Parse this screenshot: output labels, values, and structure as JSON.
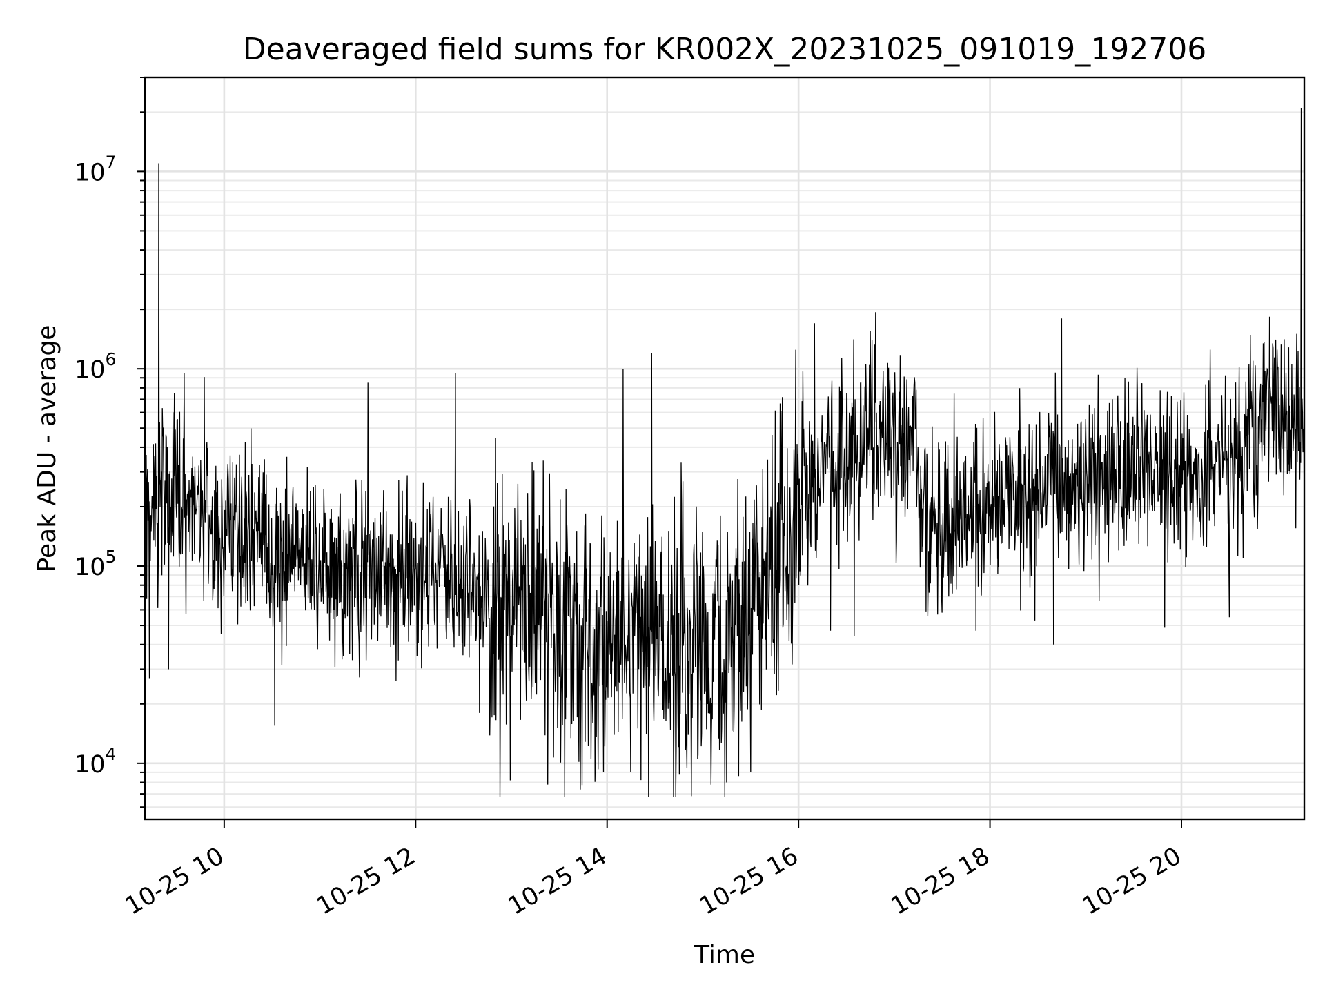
{
  "chart_data": {
    "type": "line",
    "title": "Deaveraged field sums for KR002X_20231025_091019_192706",
    "xlabel": "Time",
    "ylabel": "Peak ADU - average",
    "yscale": "log",
    "ylim": [
      5200,
      30000000
    ],
    "xlim": [
      "2023-10-25T09:10:19",
      "2023-10-25T21:17:00"
    ],
    "x_ticks": [
      {
        "x": "2023-10-25T10:00",
        "label": "10-25 10"
      },
      {
        "x": "2023-10-25T12:00",
        "label": "10-25 12"
      },
      {
        "x": "2023-10-25T14:00",
        "label": "10-25 14"
      },
      {
        "x": "2023-10-25T16:00",
        "label": "10-25 16"
      },
      {
        "x": "2023-10-25T18:00",
        "label": "10-25 18"
      },
      {
        "x": "2023-10-25T20:00",
        "label": "10-25 20"
      }
    ],
    "y_ticks": [
      {
        "value": 10000,
        "base": "10",
        "exp": "4"
      },
      {
        "value": 100000,
        "base": "10",
        "exp": "5"
      },
      {
        "value": 1000000,
        "base": "10",
        "exp": "6"
      },
      {
        "value": 10000000,
        "base": "10",
        "exp": "7"
      }
    ],
    "grid": true,
    "line_color": "#000000",
    "series": [
      {
        "trend": [
          [
            "2023-10-25T09:10",
            200000
          ],
          [
            "2023-10-25T09:20",
            250000
          ],
          [
            "2023-10-25T09:30",
            230000
          ],
          [
            "2023-10-25T10:00",
            150000
          ],
          [
            "2023-10-25T10:30",
            120000
          ],
          [
            "2023-10-25T11:00",
            105000
          ],
          [
            "2023-10-25T11:30",
            95000
          ],
          [
            "2023-10-25T12:00",
            90000
          ],
          [
            "2023-10-25T12:30",
            80000
          ],
          [
            "2023-10-25T13:00",
            60000
          ],
          [
            "2023-10-25T13:30",
            50000
          ],
          [
            "2023-10-25T14:00",
            40000
          ],
          [
            "2023-10-25T14:30",
            45000
          ],
          [
            "2023-10-25T15:00",
            40000
          ],
          [
            "2023-10-25T15:30",
            50000
          ],
          [
            "2023-10-25T15:55",
            150000
          ],
          [
            "2023-10-25T16:05",
            300000
          ],
          [
            "2023-10-25T16:30",
            350000
          ],
          [
            "2023-10-25T16:50",
            550000
          ],
          [
            "2023-10-25T17:15",
            400000
          ],
          [
            "2023-10-25T17:20",
            150000
          ],
          [
            "2023-10-25T17:45",
            180000
          ],
          [
            "2023-10-25T18:00",
            220000
          ],
          [
            "2023-10-25T18:30",
            250000
          ],
          [
            "2023-10-25T19:00",
            290000
          ],
          [
            "2023-10-25T20:00",
            300000
          ],
          [
            "2023-10-25T20:40",
            400000
          ],
          [
            "2023-10-25T21:00",
            600000
          ],
          [
            "2023-10-25T21:17",
            500000
          ]
        ],
        "spikes": [
          [
            "2023-10-25T09:13",
            27000
          ],
          [
            "2023-10-25T09:19",
            11000000
          ],
          [
            "2023-10-25T09:25",
            30000
          ],
          [
            "2023-10-25T09:35",
            950000
          ],
          [
            "2023-10-25T11:30",
            850000
          ],
          [
            "2023-10-25T12:25",
            950000
          ],
          [
            "2023-10-25T12:40",
            18000
          ],
          [
            "2023-10-25T13:50",
            10500
          ],
          [
            "2023-10-25T14:10",
            1000000
          ],
          [
            "2023-10-25T14:28",
            1200000
          ],
          [
            "2023-10-25T14:50",
            9500
          ],
          [
            "2023-10-25T15:05",
            7800
          ],
          [
            "2023-10-25T15:15",
            8000
          ],
          [
            "2023-10-25T15:30",
            9000
          ],
          [
            "2023-10-25T16:10",
            1700000
          ],
          [
            "2023-10-25T16:20",
            47000
          ],
          [
            "2023-10-25T16:35",
            44000
          ],
          [
            "2023-10-25T16:45",
            1550000
          ],
          [
            "2023-10-25T17:30",
            58000
          ],
          [
            "2023-10-25T18:45",
            1800000
          ],
          [
            "2023-10-25T18:40",
            40000
          ],
          [
            "2023-10-25T20:30",
            55000
          ],
          [
            "2023-10-25T21:00",
            1250000
          ],
          [
            "2023-10-25T21:15",
            21000000
          ]
        ]
      }
    ]
  }
}
